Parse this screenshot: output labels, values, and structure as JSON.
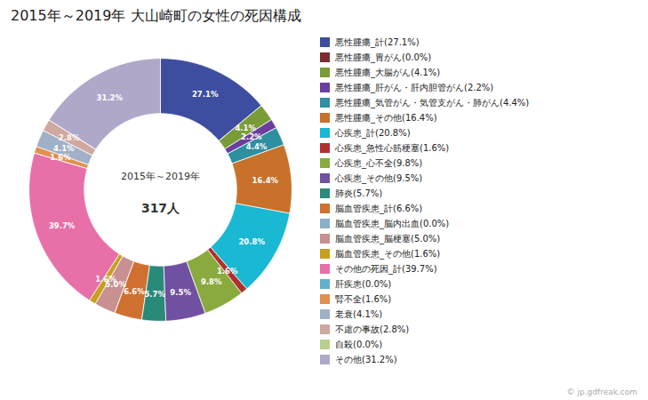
{
  "chart_data": {
    "type": "pie",
    "title": "2015年～2019年 大山崎町の女性の死因構成",
    "annotations": [
      "2015年～2019年",
      "317人"
    ],
    "categories": [
      "悪性腫瘍_計(27.1%)",
      "悪性腫瘍_胃がん(0.0%)",
      "悪性腫瘍_大腸がん(4.1%)",
      "悪性腫瘍_肝がん・肝内胆管がん(2.2%)",
      "悪性腫瘍_気管がん・気管支がん・肺がん(4.4%)",
      "悪性腫瘍_その他(16.4%)",
      "心疾患_計(20.8%)",
      "心疾患_急性心筋梗塞(1.6%)",
      "心疾患_心不全(9.8%)",
      "心疾患_その他(9.5%)",
      "肺炎(5.7%)",
      "脳血管疾患_計(6.6%)",
      "脳血管疾患_脳内出血(0.0%)",
      "脳血管疾患_脳梗塞(5.0%)",
      "脳血管疾患_その他(1.6%)",
      "その他の死因_計(39.7%)",
      "肝疾患(0.0%)",
      "腎不全(1.6%)",
      "老衰(4.1%)",
      "不慮の事故(2.8%)",
      "自殺(0.0%)",
      "その他(31.2%)"
    ],
    "values": [
      27.1,
      0.0,
      4.1,
      2.2,
      4.4,
      16.4,
      20.8,
      1.6,
      9.8,
      9.5,
      5.7,
      6.6,
      0.0,
      5.0,
      1.6,
      39.7,
      0.0,
      1.6,
      4.1,
      2.8,
      0.0,
      31.2
    ],
    "value_labels": [
      "27.1%",
      null,
      "4.1%",
      "2.2%",
      "4.4%",
      "16.4%",
      "20.8%",
      "1.6%",
      "9.8%",
      "9.5%",
      "5.7%",
      "6.6%",
      null,
      "5.0%",
      "1.6%",
      "39.7%",
      null,
      "1.6%",
      "4.1%",
      "2.8%",
      null,
      "31.2%"
    ],
    "colors": [
      "#3d4ea0",
      "#7b2d2d",
      "#7a9c38",
      "#6b3e9e",
      "#2d8fa0",
      "#c8712a",
      "#1ab8d2",
      "#b03030",
      "#8aaa40",
      "#7050a0",
      "#2a8a7a",
      "#d07030",
      "#8ab0c8",
      "#c89090",
      "#c8a020",
      "#e870a8",
      "#60b0c8",
      "#e09050",
      "#a0b0c8",
      "#d0a8a0",
      "#b8d090",
      "#b0a8c8"
    ],
    "data_labels": true,
    "legend": "right",
    "caption": "© jp.gdfreak.com"
  }
}
